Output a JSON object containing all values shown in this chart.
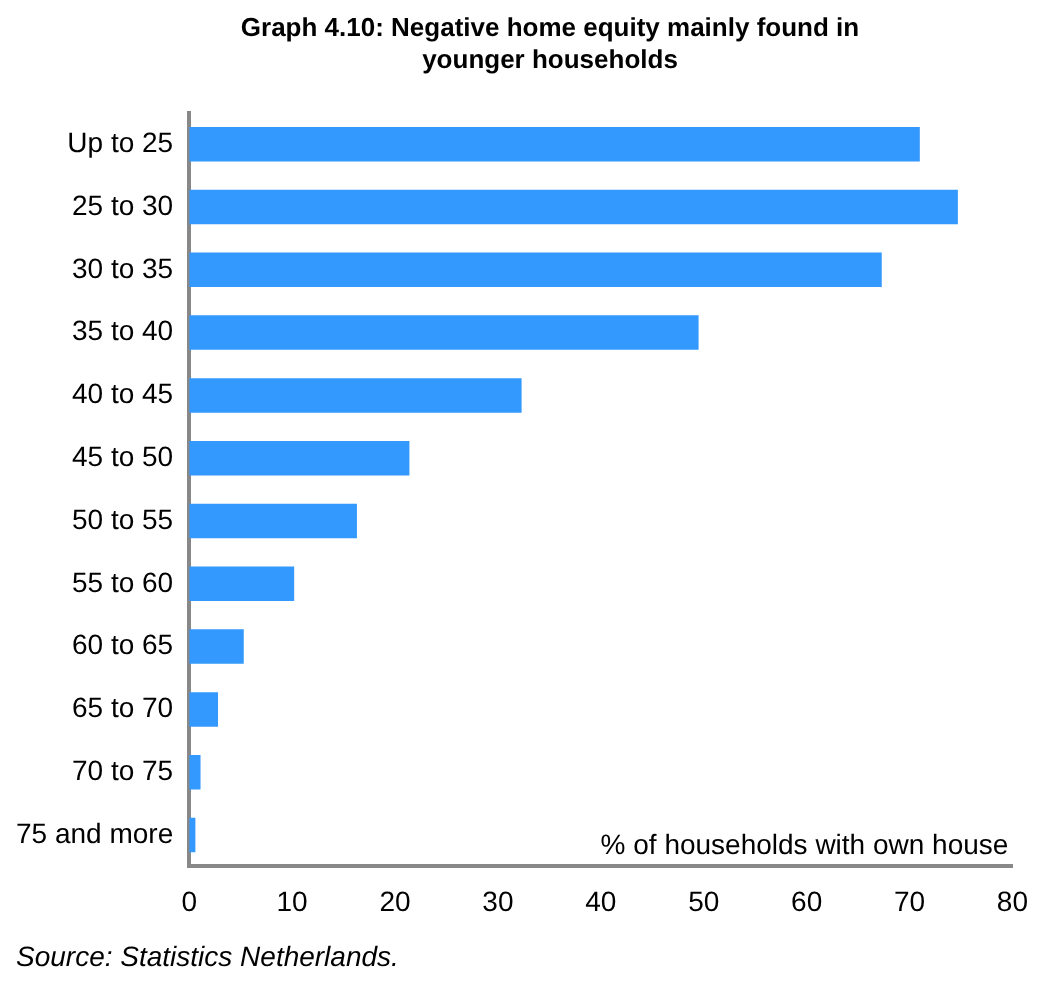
{
  "chart_data": {
    "type": "bar",
    "orientation": "horizontal",
    "title": "Graph 4.10: Negative home equity mainly found in younger households",
    "xlabel": "% of households with own house",
    "categories": [
      "Up to 25",
      "25 to 30",
      "30 to 35",
      "35 to 40",
      "40 to 45",
      "45 to 50",
      "50 to 55",
      "55 to 60",
      "60 to 65",
      "65 to 70",
      "70 to 75",
      "75 and more"
    ],
    "values": [
      71,
      74.7,
      67.3,
      49.5,
      32.3,
      21.4,
      16.3,
      10.2,
      5.3,
      2.8,
      1.1,
      0.6
    ],
    "color": "#3399ff",
    "xlim": [
      0,
      80
    ],
    "xticks": [
      0,
      10,
      20,
      30,
      40,
      50,
      60,
      70,
      80
    ],
    "grid": false,
    "legend": false,
    "annotations": [
      "Source: Statistics Netherlands."
    ]
  }
}
